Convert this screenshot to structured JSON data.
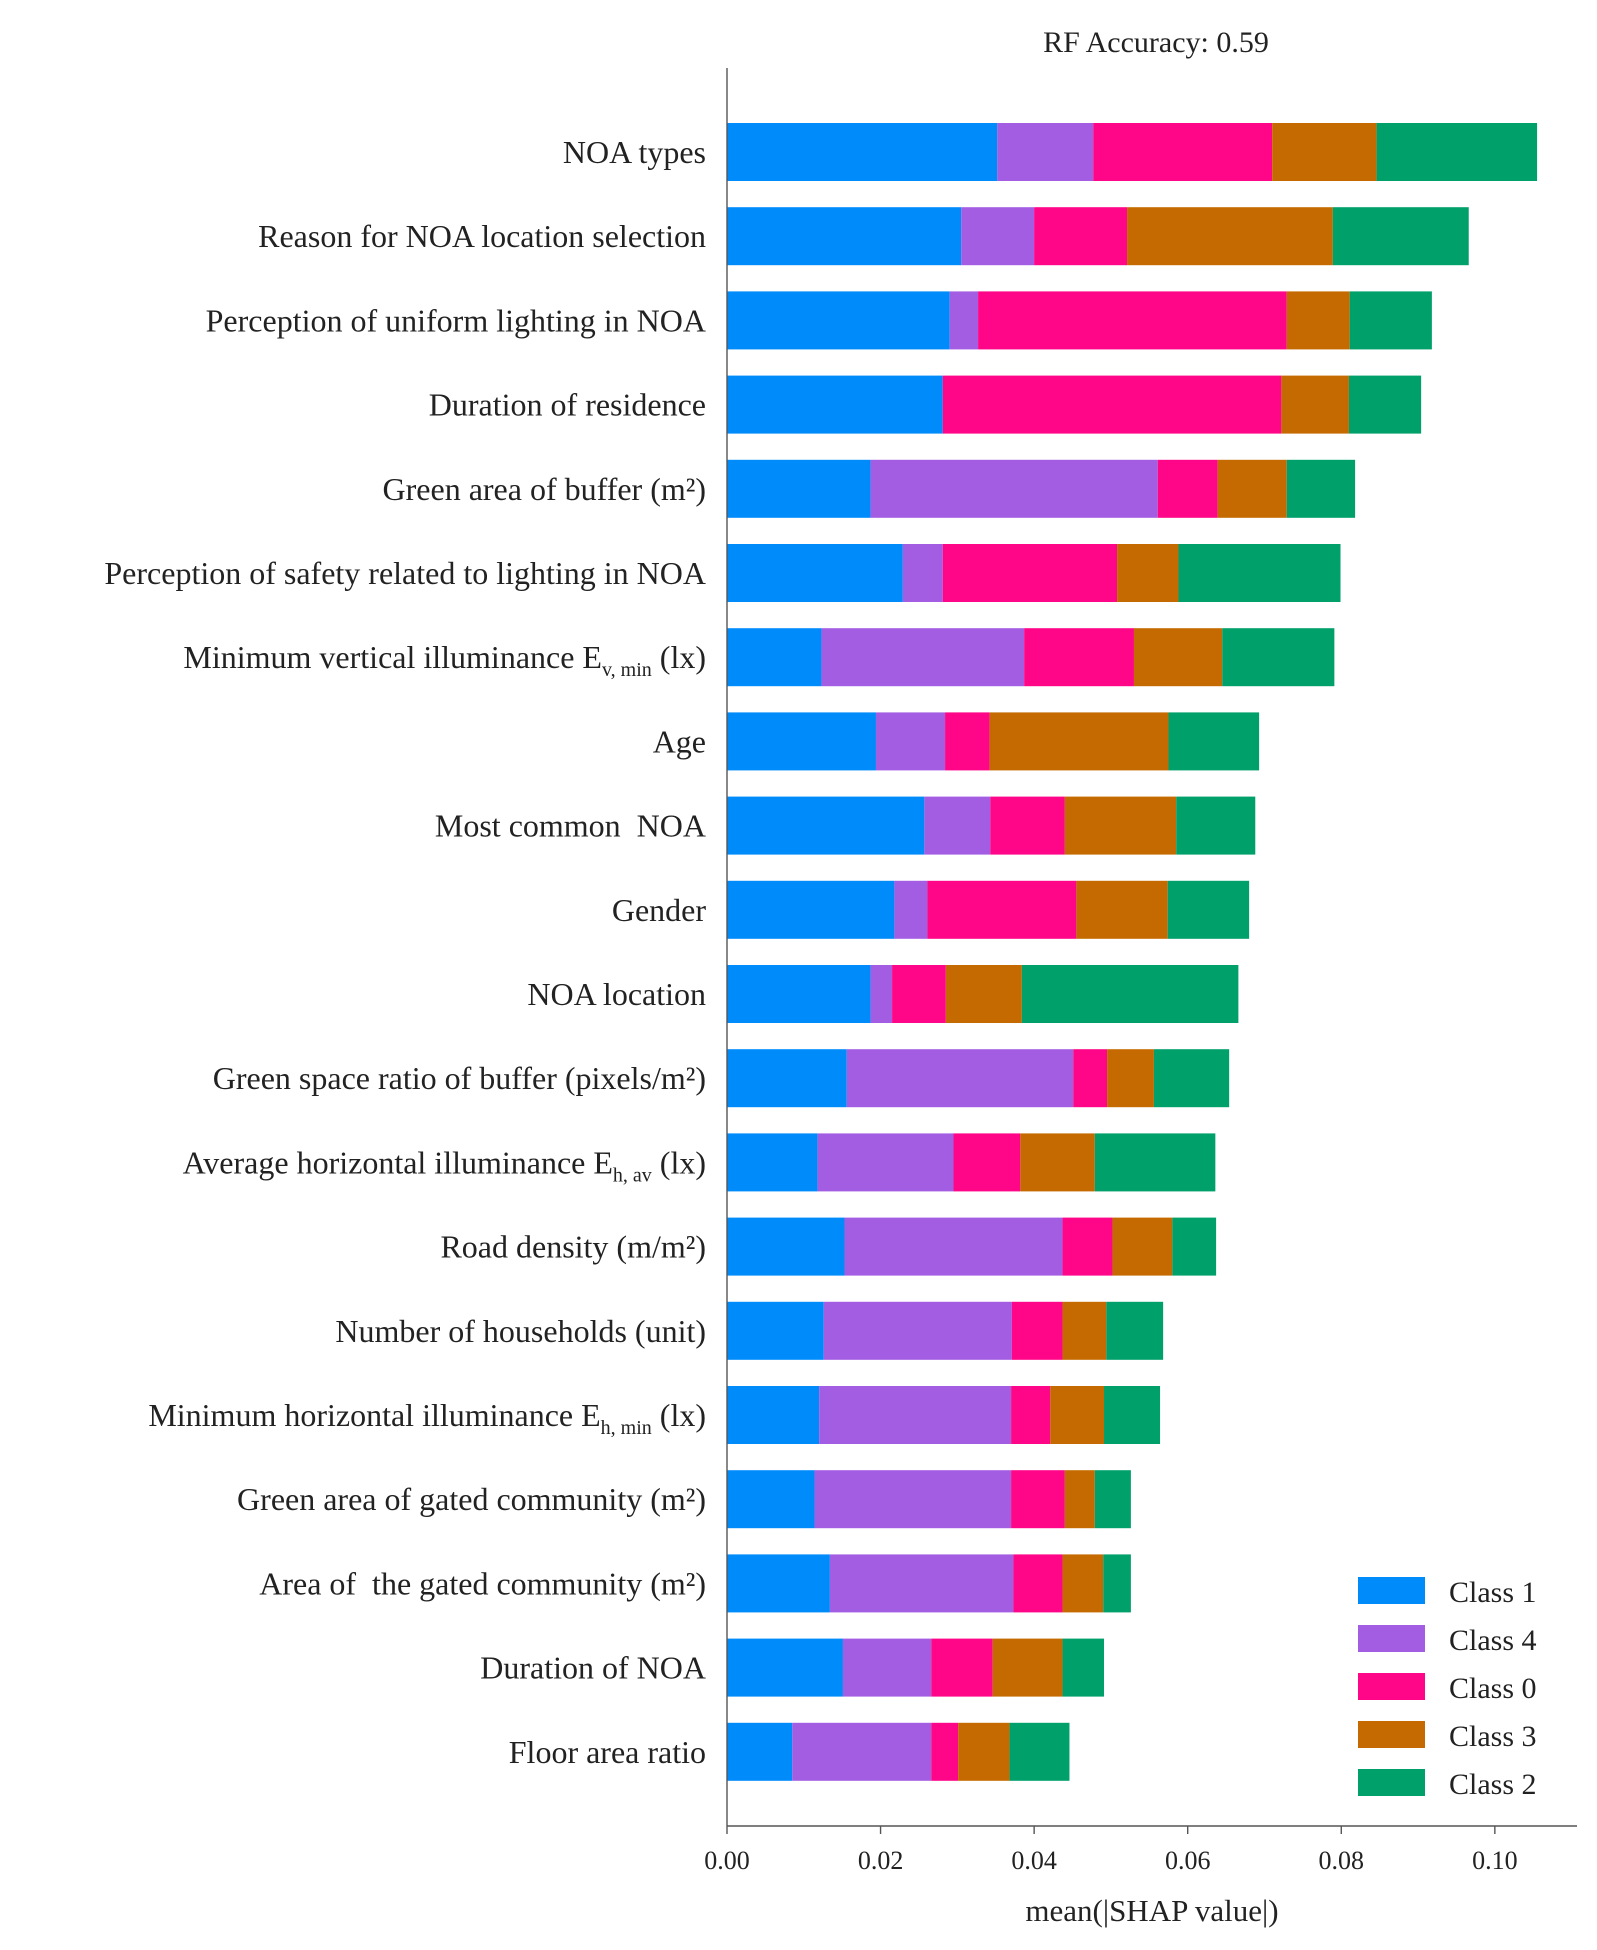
{
  "chart_data": {
    "type": "bar",
    "orientation": "horizontal",
    "stacked": true,
    "title": "RF Accuracy: 0.59",
    "xlabel": "mean(|SHAP value|)",
    "ylabel": "",
    "xlim": [
      0,
      0.1107
    ],
    "xticks": [
      0.0,
      0.02,
      0.04,
      0.06,
      0.08,
      0.1
    ],
    "xtick_labels": [
      "0.00",
      "0.02",
      "0.04",
      "0.06",
      "0.08",
      "0.10"
    ],
    "grid": false,
    "legend_position": "bottom-right",
    "categories": [
      {
        "label": "NOA types"
      },
      {
        "label": "Reason for NOA location selection"
      },
      {
        "label": "Perception of uniform lighting in NOA"
      },
      {
        "label": "Duration of residence"
      },
      {
        "label": "Green area of buffer (m²)"
      },
      {
        "label": "Perception of safety related to lighting in NOA"
      },
      {
        "label": "Minimum vertical illuminance E",
        "sub": "v, min",
        "after": " (lx)"
      },
      {
        "label": "Age"
      },
      {
        "label": "Most common  NOA"
      },
      {
        "label": "Gender"
      },
      {
        "label": "NOA location"
      },
      {
        "label": "Green space ratio of buffer (pixels/m²)"
      },
      {
        "label": "Average horizontal illuminance E",
        "sub": "h, av",
        "after": " (lx)"
      },
      {
        "label": "Road density (m/m²)"
      },
      {
        "label": "Number of households (unit)"
      },
      {
        "label": "Minimum horizontal illuminance E",
        "sub": "h, min",
        "after": " (lx)"
      },
      {
        "label": "Green area of gated community (m²)"
      },
      {
        "label": "Area of  the gated community (m²)"
      },
      {
        "label": "Duration of NOA"
      },
      {
        "label": "Floor area ratio"
      }
    ],
    "series": [
      {
        "name": "Class 1",
        "color": "#008bfb",
        "values": [
          0.0352,
          0.0305,
          0.029,
          0.0281,
          0.0187,
          0.0229,
          0.0123,
          0.0194,
          0.0257,
          0.0218,
          0.0187,
          0.0156,
          0.0118,
          0.0153,
          0.0126,
          0.012,
          0.0114,
          0.0134,
          0.0151,
          0.0085
        ]
      },
      {
        "name": "Class 4",
        "color": "#a35de3",
        "values": [
          0.0125,
          0.0095,
          0.0037,
          0.0,
          0.0374,
          0.0052,
          0.0264,
          0.009,
          0.0086,
          0.0043,
          0.0028,
          0.0295,
          0.0177,
          0.0284,
          0.0245,
          0.025,
          0.0256,
          0.0239,
          0.0115,
          0.0181
        ]
      },
      {
        "name": "Class 0",
        "color": "#ff0587",
        "values": [
          0.0233,
          0.0121,
          0.0402,
          0.0441,
          0.0078,
          0.0227,
          0.0143,
          0.0058,
          0.0097,
          0.0194,
          0.007,
          0.0044,
          0.0087,
          0.0065,
          0.0066,
          0.0051,
          0.007,
          0.0064,
          0.008,
          0.0035
        ]
      },
      {
        "name": "Class 3",
        "color": "#c56a00",
        "values": [
          0.0136,
          0.0268,
          0.0082,
          0.0088,
          0.009,
          0.008,
          0.0115,
          0.0233,
          0.0145,
          0.0119,
          0.0099,
          0.0061,
          0.0097,
          0.0078,
          0.0057,
          0.007,
          0.0039,
          0.0053,
          0.0091,
          0.0067
        ]
      },
      {
        "name": "Class 2",
        "color": "#00a06a",
        "values": [
          0.0209,
          0.0177,
          0.0107,
          0.0094,
          0.0089,
          0.0211,
          0.0146,
          0.0118,
          0.0103,
          0.0106,
          0.0282,
          0.0098,
          0.0157,
          0.0057,
          0.0074,
          0.0073,
          0.0047,
          0.0036,
          0.0054,
          0.0078
        ]
      }
    ]
  }
}
